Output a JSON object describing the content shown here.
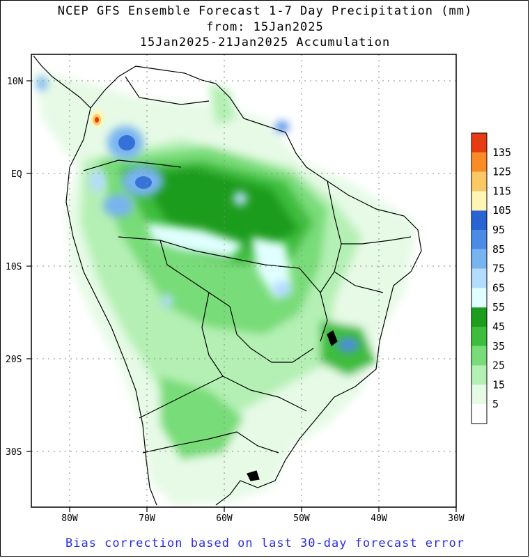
{
  "title": {
    "line1": "NCEP GFS Ensemble Forecast 1-7 Day Precipitation (mm)",
    "line2": "from: 15Jan2025",
    "line3": "15Jan2025-21Jan2025 Accumulation"
  },
  "footer": "Bias correction based on last 30-day forecast error",
  "axes": {
    "lat_labels": [
      "10N",
      "EQ",
      "10S",
      "20S",
      "30S"
    ],
    "lon_labels": [
      "80W",
      "70W",
      "60W",
      "50W",
      "40W",
      "30W"
    ]
  },
  "legend": {
    "levels": [
      "135",
      "125",
      "115",
      "105",
      "95",
      "85",
      "75",
      "65",
      "55",
      "45",
      "35",
      "25",
      "15",
      "5"
    ],
    "colors": [
      "#ffffff",
      "#e6fae6",
      "#b4f0b4",
      "#78dc78",
      "#3cbe3c",
      "#1e9c1e",
      "#e0ffff",
      "#b4dcff",
      "#78b4f0",
      "#4b8ce6",
      "#2864d2",
      "#fff5b4",
      "#fac864",
      "#fa8c28",
      "#e63c14"
    ]
  }
}
